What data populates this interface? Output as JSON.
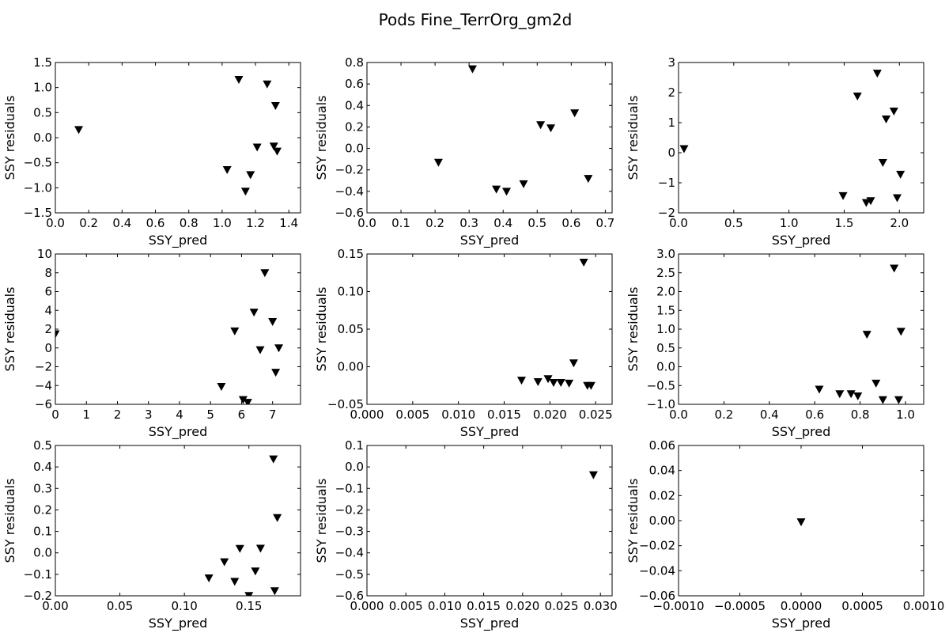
{
  "title": "Pods Fine_TerrOrg_gm2d",
  "chart_data": [
    {
      "type": "scatter",
      "xlabel": "SSY_pred",
      "ylabel": "SSY residuals",
      "xlim": [
        0.0,
        1.47
      ],
      "ylim": [
        -1.5,
        1.5
      ],
      "xticks": [
        "0.0",
        "0.2",
        "0.4",
        "0.6",
        "0.8",
        "1.0",
        "1.2",
        "1.4"
      ],
      "yticks": [
        "−1.5",
        "−1.0",
        "−0.5",
        "0.0",
        "0.5",
        "1.0",
        "1.5"
      ],
      "points": [
        [
          0.14,
          0.16
        ],
        [
          1.03,
          -0.64
        ],
        [
          1.1,
          1.16
        ],
        [
          1.14,
          -1.07
        ],
        [
          1.17,
          -0.74
        ],
        [
          1.21,
          -0.19
        ],
        [
          1.27,
          1.07
        ],
        [
          1.31,
          -0.17
        ],
        [
          1.32,
          0.64
        ],
        [
          1.33,
          -0.27
        ]
      ]
    },
    {
      "type": "scatter",
      "xlabel": "SSY_pred",
      "ylabel": "SSY residuals",
      "xlim": [
        0.0,
        0.72
      ],
      "ylim": [
        -0.6,
        0.8
      ],
      "xticks": [
        "0.0",
        "0.1",
        "0.2",
        "0.3",
        "0.4",
        "0.5",
        "0.6",
        "0.7"
      ],
      "yticks": [
        "−0.6",
        "−0.4",
        "−0.2",
        "0.0",
        "0.2",
        "0.4",
        "0.6",
        "0.8"
      ],
      "points": [
        [
          0.21,
          -0.13
        ],
        [
          0.31,
          0.74
        ],
        [
          0.38,
          -0.38
        ],
        [
          0.41,
          -0.4
        ],
        [
          0.46,
          -0.33
        ],
        [
          0.51,
          0.22
        ],
        [
          0.54,
          0.19
        ],
        [
          0.61,
          0.33
        ],
        [
          0.65,
          -0.28
        ]
      ]
    },
    {
      "type": "scatter",
      "xlabel": "SSY_pred",
      "ylabel": "SSY residuals",
      "xlim": [
        0.0,
        2.22
      ],
      "ylim": [
        -2,
        3
      ],
      "xticks": [
        "0.0",
        "0.5",
        "1.0",
        "1.5",
        "2.0"
      ],
      "yticks": [
        "−2",
        "−1",
        "0",
        "1",
        "2",
        "3"
      ],
      "points": [
        [
          0.05,
          0.13
        ],
        [
          1.49,
          -1.43
        ],
        [
          1.62,
          1.88
        ],
        [
          1.7,
          -1.66
        ],
        [
          1.74,
          -1.6
        ],
        [
          1.8,
          2.64
        ],
        [
          1.85,
          -0.33
        ],
        [
          1.88,
          1.12
        ],
        [
          1.95,
          1.38
        ],
        [
          1.98,
          -1.5
        ],
        [
          2.01,
          -0.72
        ]
      ]
    },
    {
      "type": "scatter",
      "xlabel": "SSY_pred",
      "ylabel": "SSY residuals",
      "xlim": [
        0,
        7.9
      ],
      "ylim": [
        -6,
        10
      ],
      "xticks": [
        "0",
        "1",
        "2",
        "3",
        "4",
        "5",
        "6",
        "7"
      ],
      "yticks": [
        "−6",
        "−4",
        "−2",
        "0",
        "2",
        "4",
        "6",
        "8",
        "10"
      ],
      "points": [
        [
          0.0,
          1.5
        ],
        [
          5.35,
          -4.1
        ],
        [
          5.78,
          1.8
        ],
        [
          6.05,
          -5.5
        ],
        [
          6.2,
          -5.8
        ],
        [
          6.4,
          3.8
        ],
        [
          6.6,
          -0.2
        ],
        [
          6.75,
          8.0
        ],
        [
          7.0,
          2.8
        ],
        [
          7.1,
          -2.6
        ],
        [
          7.2,
          0.0
        ]
      ]
    },
    {
      "type": "scatter",
      "xlabel": "SSY_pred",
      "ylabel": "SSY residuals",
      "xlim": [
        0.0,
        0.0268
      ],
      "ylim": [
        -0.05,
        0.15
      ],
      "xticks": [
        "0.000",
        "0.005",
        "0.010",
        "0.015",
        "0.020",
        "0.025"
      ],
      "yticks": [
        "−0.05",
        "0.00",
        "0.05",
        "0.10",
        "0.15"
      ],
      "points": [
        [
          0.0169,
          -0.018
        ],
        [
          0.0187,
          -0.02
        ],
        [
          0.0198,
          -0.016
        ],
        [
          0.0204,
          -0.021
        ],
        [
          0.0212,
          -0.021
        ],
        [
          0.0221,
          -0.022
        ],
        [
          0.0226,
          0.005
        ],
        [
          0.0237,
          0.139
        ],
        [
          0.0241,
          -0.025
        ],
        [
          0.0245,
          -0.025
        ]
      ]
    },
    {
      "type": "scatter",
      "xlabel": "SSY_pred",
      "ylabel": "SSY residuals",
      "xlim": [
        0.0,
        1.08
      ],
      "ylim": [
        -1.0,
        3.0
      ],
      "xticks": [
        "0.0",
        "0.2",
        "0.4",
        "0.6",
        "0.8",
        "1.0"
      ],
      "yticks": [
        "−1.0",
        "−0.5",
        "0.0",
        "0.5",
        "1.0",
        "1.5",
        "2.0",
        "2.5",
        "3.0"
      ],
      "points": [
        [
          0.62,
          -0.6
        ],
        [
          0.71,
          -0.72
        ],
        [
          0.76,
          -0.72
        ],
        [
          0.79,
          -0.78
        ],
        [
          0.83,
          0.86
        ],
        [
          0.87,
          -0.44
        ],
        [
          0.9,
          -0.88
        ],
        [
          0.95,
          2.62
        ],
        [
          0.97,
          -0.88
        ],
        [
          0.98,
          0.94
        ]
      ]
    },
    {
      "type": "scatter",
      "xlabel": "SSY_pred",
      "ylabel": "SSY residuals",
      "xlim": [
        0.0,
        0.19
      ],
      "ylim": [
        -0.2,
        0.5
      ],
      "xticks": [
        "0.00",
        "0.05",
        "0.10",
        "0.15"
      ],
      "yticks": [
        "−0.2",
        "−0.1",
        "0.0",
        "0.1",
        "0.2",
        "0.3",
        "0.4",
        "0.5"
      ],
      "points": [
        [
          0.119,
          -0.117
        ],
        [
          0.131,
          -0.042
        ],
        [
          0.139,
          -0.133
        ],
        [
          0.143,
          0.02
        ],
        [
          0.15,
          -0.199
        ],
        [
          0.155,
          -0.085
        ],
        [
          0.159,
          0.021
        ],
        [
          0.169,
          0.437
        ],
        [
          0.17,
          -0.177
        ],
        [
          0.172,
          0.164
        ]
      ]
    },
    {
      "type": "scatter",
      "xlabel": "SSY_pred",
      "ylabel": "SSY residuals",
      "xlim": [
        0.0,
        0.0315
      ],
      "ylim": [
        -0.6,
        0.1
      ],
      "xticks": [
        "0.000",
        "0.005",
        "0.010",
        "0.015",
        "0.020",
        "0.025",
        "0.030"
      ],
      "yticks": [
        "−0.6",
        "−0.5",
        "−0.4",
        "−0.3",
        "−0.2",
        "−0.1",
        "0.0",
        "0.1"
      ],
      "points": [
        [
          0.0291,
          -0.037
        ]
      ]
    },
    {
      "type": "scatter",
      "xlabel": "SSY_pred",
      "ylabel": "SSY residuals",
      "xlim": [
        -0.001,
        0.001
      ],
      "ylim": [
        -0.06,
        0.06
      ],
      "xticks": [
        "−0.0010",
        "−0.0005",
        "0.0000",
        "0.0005",
        "0.0010"
      ],
      "yticks": [
        "−0.06",
        "−0.04",
        "−0.02",
        "0.00",
        "0.02",
        "0.04",
        "0.06"
      ],
      "points": [
        [
          0.0,
          -0.001
        ]
      ]
    }
  ]
}
